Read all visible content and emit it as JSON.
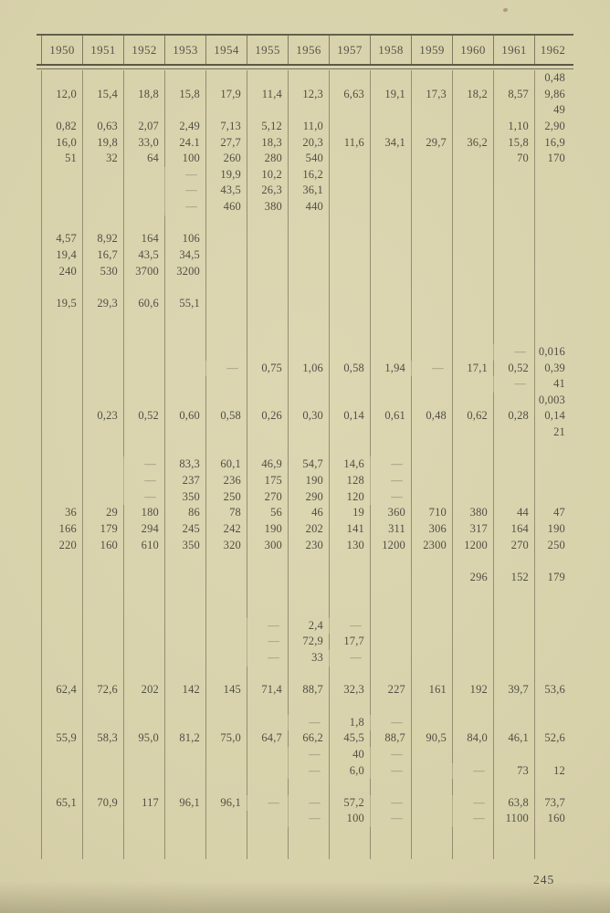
{
  "page": {
    "page_number": "245"
  },
  "colors": {
    "paper": "#d7d1aa",
    "ink": "#514e44",
    "rule": "#4f4b3c",
    "grid_line": "rgba(104,95,70,0.6)"
  },
  "table": {
    "columns": [
      "1950",
      "1951",
      "1952",
      "1953",
      "1954",
      "1955",
      "1956",
      "1957",
      "1958",
      "1959",
      "1960",
      "1961",
      "1962"
    ],
    "rows": [
      [
        "",
        "",
        "",
        "",
        "",
        "",
        "",
        "",
        "",
        "",
        "",
        "",
        "0,48"
      ],
      [
        "12,0",
        "15,4",
        "18,8",
        "15,8",
        "17,9",
        "11,4",
        "12,3",
        "6,63",
        "19,1",
        "17,3",
        "18,2",
        "8,57",
        "9,86"
      ],
      [
        "",
        "",
        "",
        "",
        "",
        "",
        "",
        "",
        "",
        "",
        "",
        "",
        "49"
      ],
      [
        "0,82",
        "0,63",
        "2,07",
        "2,49",
        "7,13",
        "5,12",
        "11,0",
        "",
        "",
        "",
        "",
        "1,10",
        "2,90"
      ],
      [
        "16,0",
        "19,8",
        "33,0",
        "24.1",
        "27,7",
        "18,3",
        "20,3",
        "11,6",
        "34,1",
        "29,7",
        "36,2",
        "15,8",
        "16,9"
      ],
      [
        "51",
        "32",
        "64",
        "100",
        "260",
        "280",
        "540",
        "",
        "",
        "",
        "",
        "70",
        "170"
      ],
      [
        "",
        "",
        "",
        "—",
        "19,9",
        "10,2",
        "16,2",
        "",
        "",
        "",
        "",
        "",
        ""
      ],
      [
        "",
        "",
        "",
        "—",
        "43,5",
        "26,3",
        "36,1",
        "",
        "",
        "",
        "",
        "",
        ""
      ],
      [
        "",
        "",
        "",
        "—",
        "460",
        "380",
        "440",
        "",
        "",
        "",
        "",
        "",
        ""
      ],
      [
        "",
        "",
        "",
        "",
        "",
        "",
        "",
        "",
        "",
        "",
        "",
        "",
        ""
      ],
      [
        "4,57",
        "8,92",
        "164",
        "106",
        "",
        "",
        "",
        "",
        "",
        "",
        "",
        "",
        ""
      ],
      [
        "19,4",
        "16,7",
        "43,5",
        "34,5",
        "",
        "",
        "",
        "",
        "",
        "",
        "",
        "",
        ""
      ],
      [
        "240",
        "530",
        "3700",
        "3200",
        "",
        "",
        "",
        "",
        "",
        "",
        "",
        "",
        ""
      ],
      [
        "",
        "",
        "",
        "",
        "",
        "",
        "",
        "",
        "",
        "",
        "",
        "",
        ""
      ],
      [
        "19,5",
        "29,3",
        "60,6",
        "55,1",
        "",
        "",
        "",
        "",
        "",
        "",
        "",
        "",
        ""
      ],
      [
        "",
        "",
        "",
        "",
        "",
        "",
        "",
        "",
        "",
        "",
        "",
        "",
        ""
      ],
      [
        "",
        "",
        "",
        "",
        "",
        "",
        "",
        "",
        "",
        "",
        "",
        "",
        ""
      ],
      [
        "",
        "",
        "",
        "",
        "",
        "",
        "",
        "",
        "",
        "",
        "",
        "—",
        "0,016"
      ],
      [
        "",
        "",
        "",
        "",
        "—",
        "0,75",
        "1,06",
        "0,58",
        "1,94",
        "—",
        "17,1",
        "0,52",
        "0,39"
      ],
      [
        "",
        "",
        "",
        "",
        "",
        "",
        "",
        "",
        "",
        "",
        "",
        "—",
        "41"
      ],
      [
        "",
        "",
        "",
        "",
        "",
        "",
        "",
        "",
        "",
        "",
        "",
        "",
        "0,003"
      ],
      [
        "",
        "0,23",
        "0,52",
        "0,60",
        "0,58",
        "0,26",
        "0,30",
        "0,14",
        "0,61",
        "0,48",
        "0,62",
        "0,28",
        "0,14"
      ],
      [
        "",
        "",
        "",
        "",
        "",
        "",
        "",
        "",
        "",
        "",
        "",
        "",
        "21"
      ],
      [
        "",
        "",
        "",
        "",
        "",
        "",
        "",
        "",
        "",
        "",
        "",
        "",
        ""
      ],
      [
        "",
        "",
        "—",
        "83,3",
        "60,1",
        "46,9",
        "54,7",
        "14,6",
        "—",
        "",
        "",
        "",
        ""
      ],
      [
        "",
        "",
        "—",
        "237",
        "236",
        "175",
        "190",
        "128",
        "—",
        "",
        "",
        "",
        ""
      ],
      [
        "",
        "",
        "—",
        "350",
        "250",
        "270",
        "290",
        "120",
        "—",
        "",
        "",
        "",
        ""
      ],
      [
        "36",
        "29",
        "180",
        "86",
        "78",
        "56",
        "46",
        "19",
        "360",
        "710",
        "380",
        "44",
        "47"
      ],
      [
        "166",
        "179",
        "294",
        "245",
        "242",
        "190",
        "202",
        "141",
        "311",
        "306",
        "317",
        "164",
        "190"
      ],
      [
        "220",
        "160",
        "610",
        "350",
        "320",
        "300",
        "230",
        "130",
        "1200",
        "2300",
        "1200",
        "270",
        "250"
      ],
      [
        "",
        "",
        "",
        "",
        "",
        "",
        "",
        "",
        "",
        "",
        "",
        "",
        ""
      ],
      [
        "",
        "",
        "",
        "",
        "",
        "",
        "",
        "",
        "",
        "",
        "296",
        "152",
        "179"
      ],
      [
        "",
        "",
        "",
        "",
        "",
        "",
        "",
        "",
        "",
        "",
        "",
        "",
        ""
      ],
      [
        "",
        "",
        "",
        "",
        "",
        "",
        "",
        "",
        "",
        "",
        "",
        "",
        ""
      ],
      [
        "",
        "",
        "",
        "",
        "",
        "—",
        "2,4",
        "—",
        "",
        "",
        "",
        "",
        ""
      ],
      [
        "",
        "",
        "",
        "",
        "",
        "—",
        "72,9",
        "17,7",
        "",
        "",
        "",
        "",
        ""
      ],
      [
        "",
        "",
        "",
        "",
        "",
        "—",
        "33",
        "—",
        "",
        "",
        "",
        "",
        ""
      ],
      [
        "",
        "",
        "",
        "",
        "",
        "",
        "",
        "",
        "",
        "",
        "",
        "",
        ""
      ],
      [
        "62,4",
        "72,6",
        "202",
        "142",
        "145",
        "71,4",
        "88,7",
        "32,3",
        "227",
        "161",
        "192",
        "39,7",
        "53,6"
      ],
      [
        "",
        "",
        "",
        "",
        "",
        "",
        "",
        "",
        "",
        "",
        "",
        "",
        ""
      ],
      [
        "",
        "",
        "",
        "",
        "",
        "",
        "—",
        "1,8",
        "—",
        "",
        "",
        "",
        ""
      ],
      [
        "55,9",
        "58,3",
        "95,0",
        "81,2",
        "75,0",
        "64,7",
        "66,2",
        "45,5",
        "88,7",
        "90,5",
        "84,0",
        "46,1",
        "52,6"
      ],
      [
        "",
        "",
        "",
        "",
        "",
        "",
        "—",
        "40",
        "—",
        "",
        "",
        "",
        ""
      ],
      [
        "",
        "",
        "",
        "",
        "",
        "",
        "—",
        "6,0",
        "—",
        "",
        "—",
        "73",
        "12"
      ],
      [
        "",
        "",
        "",
        "",
        "",
        "",
        "",
        "",
        "",
        "",
        "",
        "",
        ""
      ],
      [
        "65,1",
        "70,9",
        "117",
        "96,1",
        "96,1",
        "—",
        "—",
        "57,2",
        "—",
        "",
        "—",
        "63,8",
        "73,7"
      ],
      [
        "",
        "",
        "",
        "",
        "",
        "",
        "—",
        "100",
        "—",
        "",
        "—",
        "1100",
        "160"
      ],
      [
        "",
        "",
        "",
        "",
        "",
        "",
        "",
        "",
        "",
        "",
        "",
        "",
        ""
      ],
      [
        "",
        "",
        "",
        "",
        "",
        "",
        "",
        "",
        "",
        "",
        "",
        "",
        ""
      ]
    ]
  }
}
